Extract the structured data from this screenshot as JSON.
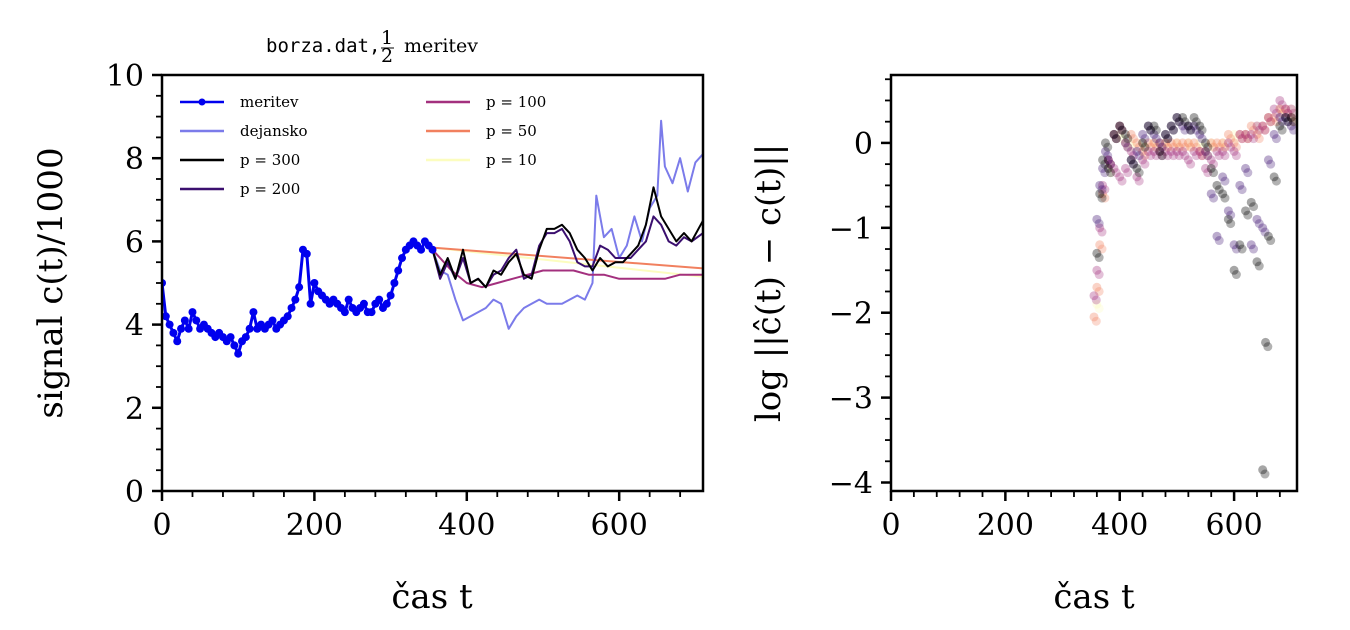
{
  "chart_data": [
    {
      "type": "line",
      "title": {
        "mono": "borza.dat,",
        "frac_num": "1",
        "frac_den": "2",
        "rest": "meritev"
      },
      "xlabel": "čas t",
      "ylabel": "signal c(t)/1000",
      "xlim": [
        0,
        710
      ],
      "ylim": [
        0,
        10
      ],
      "xticks": [
        0,
        200,
        400,
        600
      ],
      "xtick_labels": [
        "0",
        "200",
        "400",
        "600"
      ],
      "yticks": [
        0,
        2,
        4,
        6,
        8,
        10
      ],
      "ytick_labels": [
        "0",
        "2",
        "4",
        "6",
        "8",
        "10"
      ],
      "legend_position": "top-left",
      "legend": [
        {
          "label": "meritev",
          "color": "#0000ee",
          "marker": true
        },
        {
          "label": "dejansko",
          "color": "#7b7bea"
        },
        {
          "label": "p = 300",
          "color": "#000000"
        },
        {
          "label": "p = 200",
          "color": "#3b0f6f"
        },
        {
          "label": "p = 100",
          "color": "#a3307e"
        },
        {
          "label": "p = 50",
          "color": "#f1805f"
        },
        {
          "label": "p = 10",
          "color": "#fcfdbf"
        }
      ],
      "series": [
        {
          "name": "meritev",
          "color": "#0000ee",
          "x": [
            0,
            5,
            10,
            15,
            20,
            25,
            30,
            35,
            40,
            45,
            50,
            55,
            60,
            65,
            70,
            75,
            80,
            85,
            90,
            95,
            100,
            105,
            110,
            115,
            120,
            125,
            130,
            135,
            140,
            145,
            150,
            155,
            160,
            165,
            170,
            175,
            180,
            185,
            190,
            195,
            200,
            205,
            210,
            215,
            220,
            225,
            230,
            235,
            240,
            245,
            250,
            255,
            260,
            265,
            270,
            275,
            280,
            285,
            290,
            295,
            300,
            305,
            310,
            315,
            320,
            325,
            330,
            335,
            340,
            345,
            350,
            355
          ],
          "y": [
            5.0,
            4.2,
            4.0,
            3.8,
            3.6,
            3.9,
            4.1,
            3.9,
            4.3,
            4.1,
            3.9,
            4.0,
            3.9,
            3.8,
            3.7,
            3.8,
            3.7,
            3.6,
            3.7,
            3.5,
            3.3,
            3.6,
            3.7,
            3.9,
            4.3,
            3.9,
            4.0,
            3.9,
            4.0,
            4.1,
            3.9,
            4.0,
            4.1,
            4.2,
            4.4,
            4.6,
            4.9,
            5.8,
            5.7,
            4.5,
            5.0,
            4.8,
            4.7,
            4.6,
            4.5,
            4.6,
            4.5,
            4.4,
            4.3,
            4.6,
            4.4,
            4.3,
            4.4,
            4.5,
            4.3,
            4.3,
            4.5,
            4.6,
            4.4,
            4.5,
            4.7,
            5.0,
            5.3,
            5.6,
            5.8,
            5.9,
            6.0,
            5.9,
            5.8,
            6.0,
            5.9,
            5.8
          ]
        },
        {
          "name": "dejansko",
          "color": "#7b7bea",
          "x": [
            355,
            365,
            375,
            385,
            395,
            405,
            415,
            425,
            435,
            445,
            455,
            465,
            475,
            485,
            495,
            505,
            515,
            525,
            535,
            545,
            555,
            565,
            570,
            580,
            590,
            600,
            610,
            620,
            630,
            640,
            650,
            655,
            660,
            670,
            680,
            690,
            700,
            710
          ],
          "y": [
            5.8,
            5.3,
            5.2,
            4.6,
            4.1,
            4.2,
            4.3,
            4.4,
            4.6,
            4.5,
            3.9,
            4.2,
            4.4,
            4.5,
            4.6,
            4.5,
            4.5,
            4.5,
            4.6,
            4.7,
            4.6,
            5.0,
            7.1,
            6.1,
            6.3,
            5.6,
            5.9,
            6.6,
            6.0,
            6.8,
            7.1,
            8.9,
            7.8,
            7.4,
            8.0,
            7.2,
            7.9,
            8.1
          ]
        },
        {
          "name": "p = 300",
          "color": "#000000",
          "x": [
            355,
            365,
            375,
            385,
            395,
            405,
            415,
            425,
            435,
            445,
            455,
            465,
            475,
            485,
            495,
            505,
            515,
            525,
            535,
            545,
            555,
            565,
            575,
            585,
            595,
            605,
            615,
            625,
            635,
            645,
            655,
            665,
            675,
            685,
            695,
            710
          ],
          "y": [
            5.8,
            5.2,
            5.6,
            5.1,
            5.8,
            5.0,
            5.1,
            4.9,
            5.3,
            5.2,
            5.5,
            5.7,
            5.2,
            5.1,
            5.8,
            6.3,
            6.3,
            6.4,
            6.2,
            5.8,
            5.6,
            5.3,
            5.6,
            5.4,
            5.5,
            5.5,
            5.7,
            5.9,
            6.4,
            7.3,
            6.6,
            6.3,
            6.0,
            6.2,
            6.0,
            6.5
          ]
        },
        {
          "name": "p = 200",
          "color": "#3b0f6f",
          "x": [
            355,
            365,
            375,
            385,
            395,
            405,
            415,
            425,
            435,
            445,
            455,
            465,
            475,
            485,
            495,
            505,
            515,
            525,
            535,
            545,
            555,
            565,
            575,
            585,
            595,
            605,
            615,
            625,
            635,
            645,
            655,
            665,
            675,
            685,
            695,
            710
          ],
          "y": [
            5.8,
            5.1,
            5.5,
            5.1,
            5.6,
            5.0,
            5.1,
            4.9,
            5.2,
            5.3,
            5.6,
            5.8,
            5.1,
            5.2,
            5.9,
            6.2,
            6.2,
            6.3,
            6.0,
            5.5,
            5.4,
            5.4,
            5.9,
            5.8,
            5.6,
            5.6,
            5.6,
            5.8,
            6.0,
            6.6,
            6.4,
            6.0,
            5.9,
            6.1,
            6.0,
            6.2
          ]
        },
        {
          "name": "p = 100",
          "color": "#a3307e",
          "x": [
            355,
            380,
            400,
            420,
            440,
            460,
            480,
            500,
            520,
            540,
            560,
            580,
            600,
            620,
            640,
            660,
            680,
            700,
            710
          ],
          "y": [
            5.8,
            5.3,
            5.0,
            4.9,
            5.0,
            5.1,
            5.2,
            5.3,
            5.3,
            5.3,
            5.2,
            5.2,
            5.1,
            5.1,
            5.1,
            5.1,
            5.2,
            5.2,
            5.2
          ]
        },
        {
          "name": "p = 50",
          "color": "#f1805f",
          "x": [
            355,
            710
          ],
          "y": [
            5.85,
            5.35
          ]
        },
        {
          "name": "p = 10",
          "color": "#fcfdbf",
          "x": [
            355,
            710
          ],
          "y": [
            5.85,
            5.15
          ]
        }
      ]
    },
    {
      "type": "scatter",
      "title": "",
      "xlabel": "čas t",
      "ylabel": "log ||ĉ(t) − c(t)||",
      "xlim": [
        0,
        710
      ],
      "ylim": [
        -4.1,
        0.8
      ],
      "xticks": [
        0,
        200,
        400,
        600
      ],
      "xtick_labels": [
        "0",
        "200",
        "400",
        "600"
      ],
      "yticks": [
        -4,
        -3,
        -2,
        -1,
        0
      ],
      "ytick_labels": [
        "−4",
        "−3",
        "−2",
        "−1",
        "0"
      ],
      "series": [
        {
          "name": "p = 300",
          "color": "#000000",
          "x": [
            360,
            365,
            370,
            375,
            380,
            390,
            400,
            410,
            420,
            430,
            440,
            450,
            460,
            470,
            480,
            490,
            500,
            510,
            520,
            530,
            540,
            550,
            560,
            570,
            580,
            590,
            600,
            610,
            620,
            630,
            640,
            650,
            655,
            660,
            670,
            680,
            690,
            700
          ],
          "y": [
            -1.3,
            -0.6,
            -0.2,
            0.0,
            -0.3,
            0.1,
            0.2,
            0.1,
            -0.2,
            -0.3,
            0.0,
            0.2,
            0.2,
            -0.1,
            0.1,
            0.2,
            0.3,
            0.3,
            0.2,
            0.3,
            0.2,
            0.0,
            -0.3,
            -0.5,
            -0.6,
            -0.9,
            -1.5,
            -1.2,
            -0.8,
            -0.7,
            -1.4,
            -3.85,
            -2.35,
            -1.1,
            -0.4,
            0.2,
            0.3,
            0.3
          ]
        },
        {
          "name": "p = 200",
          "color": "#3b0f6f",
          "x": [
            360,
            365,
            370,
            375,
            380,
            390,
            400,
            410,
            420,
            430,
            440,
            450,
            460,
            470,
            480,
            490,
            500,
            510,
            520,
            530,
            540,
            550,
            560,
            570,
            580,
            590,
            600,
            610,
            620,
            630,
            640,
            650,
            660,
            670,
            680,
            690,
            700
          ],
          "y": [
            -0.9,
            -0.5,
            -0.3,
            -0.1,
            -0.2,
            0.1,
            0.2,
            0.0,
            -0.2,
            -0.1,
            0.1,
            0.2,
            0.1,
            0.0,
            0.1,
            0.2,
            0.3,
            0.2,
            0.2,
            0.2,
            0.1,
            -0.1,
            -0.6,
            -1.1,
            -0.4,
            -0.8,
            -1.2,
            -0.5,
            -0.3,
            -1.2,
            -0.9,
            -1.0,
            -0.2,
            0.1,
            0.3,
            0.3,
            0.2
          ]
        },
        {
          "name": "p = 100",
          "color": "#a3307e",
          "x": [
            355,
            360,
            365,
            370,
            380,
            390,
            400,
            410,
            420,
            430,
            440,
            450,
            460,
            470,
            480,
            490,
            500,
            510,
            520,
            530,
            540,
            550,
            560,
            570,
            580,
            590,
            600,
            610,
            620,
            630,
            640,
            650,
            660,
            670,
            680,
            690,
            700
          ],
          "y": [
            -1.8,
            -1.5,
            -1.0,
            -0.5,
            -0.2,
            -0.3,
            -0.4,
            -0.3,
            -0.1,
            -0.4,
            -0.2,
            -0.1,
            -0.1,
            -0.1,
            -0.1,
            -0.1,
            -0.1,
            -0.1,
            -0.2,
            -0.1,
            -0.1,
            -0.3,
            -0.2,
            -0.1,
            -0.1,
            0.0,
            -0.1,
            0.1,
            0.1,
            0.1,
            0.2,
            0.2,
            0.3,
            0.4,
            0.5,
            0.4,
            0.4
          ]
        },
        {
          "name": "p = 50",
          "color": "#f1805f",
          "x": [
            355,
            360,
            365,
            370,
            380,
            390,
            400,
            410,
            420,
            430,
            440,
            450,
            460,
            470,
            480,
            490,
            500,
            510,
            520,
            530,
            540,
            550,
            560,
            570,
            580,
            590,
            600,
            610,
            620,
            630,
            640,
            650,
            660,
            670,
            680,
            690,
            700
          ],
          "y": [
            -2.05,
            -1.7,
            -1.2,
            -0.6,
            -0.2,
            0.1,
            0.2,
            0.0,
            0.1,
            0.0,
            -0.1,
            0.0,
            0.0,
            0.0,
            0.0,
            0.0,
            0.0,
            0.0,
            0.0,
            0.0,
            -0.1,
            -0.1,
            0.0,
            0.0,
            0.0,
            0.1,
            0.0,
            0.1,
            0.1,
            0.2,
            0.1,
            0.2,
            0.3,
            0.3,
            0.4,
            0.4,
            0.3
          ]
        },
        {
          "name": "p = 10",
          "color": "#fcfdbf",
          "x": [
            360,
            380,
            400,
            420,
            440,
            460,
            480,
            500,
            520,
            540,
            560,
            580,
            600,
            620,
            640,
            660,
            680,
            700
          ],
          "y": [
            -1.9,
            -0.3,
            0.1,
            0.0,
            0.0,
            0.0,
            0.0,
            0.0,
            0.0,
            0.0,
            0.0,
            0.0,
            0.1,
            0.1,
            0.2,
            0.3,
            0.4,
            0.4
          ]
        }
      ]
    }
  ]
}
